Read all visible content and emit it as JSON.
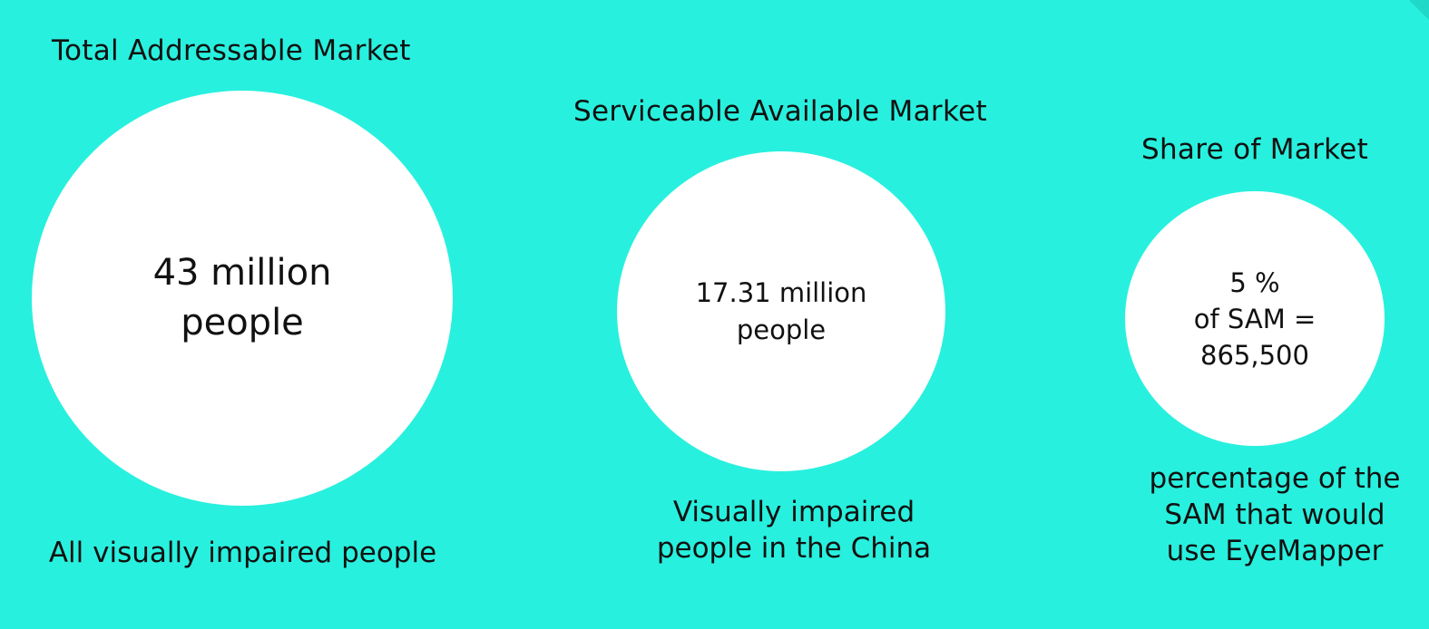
{
  "tam": {
    "heading": "Total Addressable Market",
    "value_line1": "43 million",
    "value_line2": "people",
    "caption": "All visually impaired people"
  },
  "sam": {
    "heading": "Serviceable Available Market",
    "value_line1": "17.31 million",
    "value_line2": "people",
    "caption_line1": "Visually impaired",
    "caption_line2": "people in the China"
  },
  "som": {
    "heading": "Share of Market",
    "value_line1": "5 %",
    "value_line2": "of SAM =",
    "value_line3": "865,500",
    "caption_line1": "percentage of the",
    "caption_line2": "SAM that would",
    "caption_line3": "use EyeMapper"
  },
  "colors": {
    "background": "#28F0DE",
    "circle": "#FFFFFF",
    "text": "#111111"
  }
}
